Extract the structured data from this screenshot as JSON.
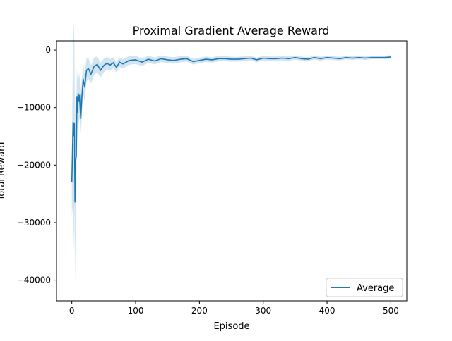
{
  "chart_data": {
    "type": "line",
    "title": "Proximal Gradient Average Reward",
    "xlabel": "Episode",
    "ylabel": "Total Reward",
    "xlim": [
      -24,
      525
    ],
    "ylim": [
      -43600,
      1600
    ],
    "xticks": [
      0,
      100,
      200,
      300,
      400,
      500
    ],
    "xtick_labels": [
      "0",
      "100",
      "200",
      "300",
      "400",
      "500"
    ],
    "yticks": [
      0,
      -10000,
      -20000,
      -30000,
      -40000
    ],
    "ytick_labels": [
      "0",
      "−10000",
      "−20000",
      "−30000",
      "−40000"
    ],
    "grid": false,
    "legend_position": "lower-right",
    "series": [
      {
        "name": "Average",
        "color": "#1f77b4",
        "band_color": "#1f77b4",
        "x": [
          0,
          2,
          3,
          4,
          5,
          6,
          7,
          8,
          9,
          10,
          11,
          12,
          14,
          16,
          18,
          20,
          23,
          26,
          30,
          35,
          40,
          45,
          50,
          55,
          60,
          65,
          70,
          75,
          80,
          90,
          100,
          110,
          120,
          130,
          140,
          150,
          160,
          170,
          180,
          190,
          200,
          210,
          220,
          230,
          240,
          250,
          260,
          270,
          280,
          290,
          300,
          310,
          320,
          330,
          340,
          350,
          360,
          370,
          380,
          390,
          400,
          410,
          420,
          430,
          440,
          450,
          460,
          470,
          480,
          490,
          500
        ],
        "y": [
          -23000,
          -12500,
          -15000,
          -12600,
          -26500,
          -19000,
          -18500,
          -8000,
          -11000,
          -7500,
          -9000,
          -7800,
          -12000,
          -7800,
          -5000,
          -6500,
          -3500,
          -3200,
          -4200,
          -2800,
          -2500,
          -3500,
          -2700,
          -2300,
          -2600,
          -2200,
          -3000,
          -2100,
          -2400,
          -1800,
          -1700,
          -2100,
          -1600,
          -1900,
          -1500,
          -1700,
          -1800,
          -1600,
          -1500,
          -2000,
          -1800,
          -1600,
          -1700,
          -1500,
          -1500,
          -1600,
          -1600,
          -1500,
          -1400,
          -1700,
          -1400,
          -1500,
          -1500,
          -1400,
          -1500,
          -1300,
          -1500,
          -1600,
          -1300,
          -1500,
          -1300,
          -1400,
          -1500,
          -1300,
          -1400,
          -1300,
          -1400,
          -1300,
          -1300,
          -1300,
          -1200
        ],
        "band_half_width": [
          6000,
          14000,
          20000,
          14000,
          14000,
          12000,
          8000,
          5000,
          6000,
          4500,
          4000,
          3800,
          3500,
          3000,
          2600,
          2300,
          2000,
          1800,
          1600,
          1500,
          1400,
          1300,
          1200,
          1100,
          1000,
          950,
          900,
          850,
          800,
          750,
          700,
          650,
          620,
          600,
          580,
          560,
          540,
          520,
          500,
          500,
          480,
          470,
          460,
          450,
          440,
          430,
          420,
          410,
          400,
          400,
          400,
          390,
          380,
          380,
          370,
          360,
          360,
          350,
          350,
          340,
          340,
          330,
          330,
          320,
          320,
          310,
          310,
          300,
          300,
          300,
          300
        ]
      }
    ]
  }
}
